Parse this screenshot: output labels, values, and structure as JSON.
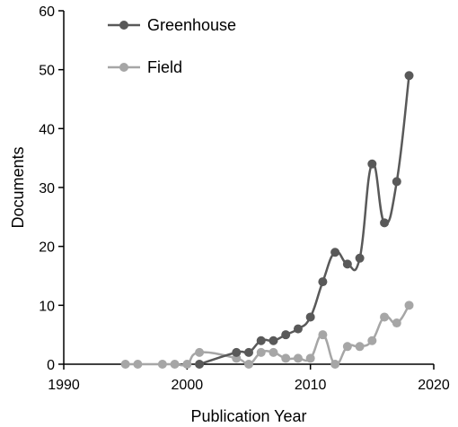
{
  "chart_data": {
    "type": "line",
    "title": "",
    "xlabel": "Publication Year",
    "ylabel": "Documents",
    "xlim": [
      1990,
      2020
    ],
    "ylim": [
      0,
      60
    ],
    "x_ticks": [
      "1990",
      "2000",
      "2010",
      "2020"
    ],
    "y_ticks": [
      "0",
      "10",
      "20",
      "30",
      "40",
      "50",
      "60"
    ],
    "grid": false,
    "legend_position": "top-left",
    "series": [
      {
        "name": "Greenhouse",
        "color": "#595959",
        "points": [
          {
            "x": 2001,
            "y": 0
          },
          {
            "x": 2004,
            "y": 2
          },
          {
            "x": 2005,
            "y": 2
          },
          {
            "x": 2006,
            "y": 4
          },
          {
            "x": 2007,
            "y": 4
          },
          {
            "x": 2008,
            "y": 5
          },
          {
            "x": 2009,
            "y": 6
          },
          {
            "x": 2010,
            "y": 8
          },
          {
            "x": 2011,
            "y": 14
          },
          {
            "x": 2012,
            "y": 19
          },
          {
            "x": 2013,
            "y": 17
          },
          {
            "x": 2014,
            "y": 18
          },
          {
            "x": 2015,
            "y": 34
          },
          {
            "x": 2016,
            "y": 24
          },
          {
            "x": 2017,
            "y": 31
          },
          {
            "x": 2018,
            "y": 49
          }
        ]
      },
      {
        "name": "Field",
        "color": "#a6a6a6",
        "points": [
          {
            "x": 1995,
            "y": 0
          },
          {
            "x": 1996,
            "y": 0
          },
          {
            "x": 1998,
            "y": 0
          },
          {
            "x": 1999,
            "y": 0
          },
          {
            "x": 2000,
            "y": 0
          },
          {
            "x": 2001,
            "y": 2
          },
          {
            "x": 2004,
            "y": 1
          },
          {
            "x": 2005,
            "y": 0
          },
          {
            "x": 2006,
            "y": 2
          },
          {
            "x": 2007,
            "y": 2
          },
          {
            "x": 2008,
            "y": 1
          },
          {
            "x": 2009,
            "y": 1
          },
          {
            "x": 2010,
            "y": 1
          },
          {
            "x": 2011,
            "y": 5
          },
          {
            "x": 2012,
            "y": 0
          },
          {
            "x": 2013,
            "y": 3
          },
          {
            "x": 2014,
            "y": 3
          },
          {
            "x": 2015,
            "y": 4
          },
          {
            "x": 2016,
            "y": 8
          },
          {
            "x": 2017,
            "y": 7
          },
          {
            "x": 2018,
            "y": 10
          }
        ]
      }
    ]
  }
}
